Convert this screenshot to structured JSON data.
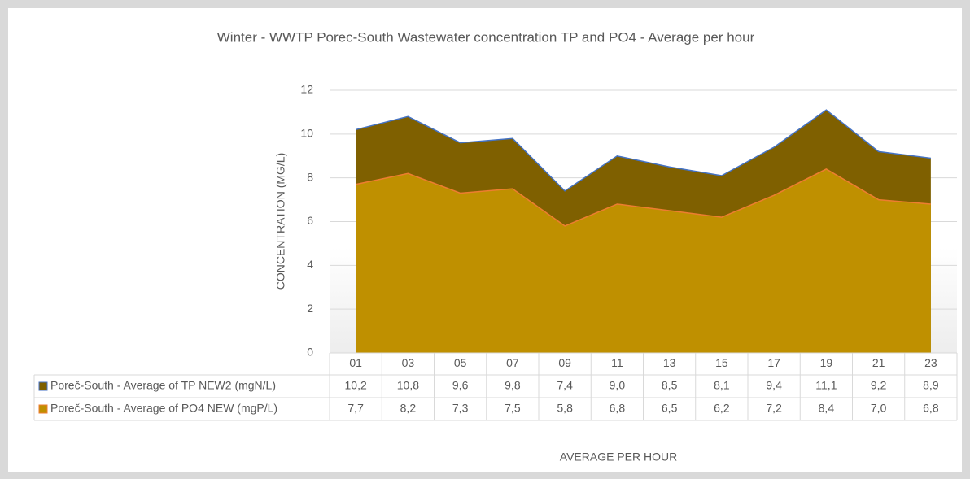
{
  "chart_data": {
    "type": "area",
    "title": "Winter - WWTP Porec-South Wastewater concentration TP and PO4 - Average per hour",
    "y_label": "CONCENTRATION (MG/L)",
    "x_label": "AVERAGE PER HOUR",
    "categories": [
      "01",
      "03",
      "05",
      "07",
      "09",
      "11",
      "13",
      "15",
      "17",
      "19",
      "21",
      "23"
    ],
    "series": [
      {
        "name": "Poreč-South - Average of TP NEW2 (mgN/L)",
        "color": "#7f6000",
        "line_color": "#4472c4",
        "values": [
          10.2,
          10.8,
          9.6,
          9.8,
          7.4,
          9.0,
          8.5,
          8.1,
          9.4,
          11.1,
          9.2,
          8.9
        ],
        "value_labels": [
          "10,2",
          "10,8",
          "9,6",
          "9,8",
          "7,4",
          "9,0",
          "8,5",
          "8,1",
          "9,4",
          "11,1",
          "9,2",
          "8,9"
        ]
      },
      {
        "name": "Poreč-South - Average of PO4 NEW (mgP/L)",
        "color": "#bf9000",
        "line_color": "#ed7d31",
        "values": [
          7.7,
          8.2,
          7.3,
          7.5,
          5.8,
          6.8,
          6.5,
          6.2,
          7.2,
          8.4,
          7.0,
          6.8
        ],
        "value_labels": [
          "7,7",
          "8,2",
          "7,3",
          "7,5",
          "5,8",
          "6,8",
          "6,5",
          "6,2",
          "7,2",
          "8,4",
          "7,0",
          "6,8"
        ]
      }
    ],
    "ylim": [
      0,
      12
    ],
    "yticks": [
      0,
      2,
      4,
      6,
      8,
      10,
      12
    ],
    "grid": true,
    "data_table": true
  }
}
